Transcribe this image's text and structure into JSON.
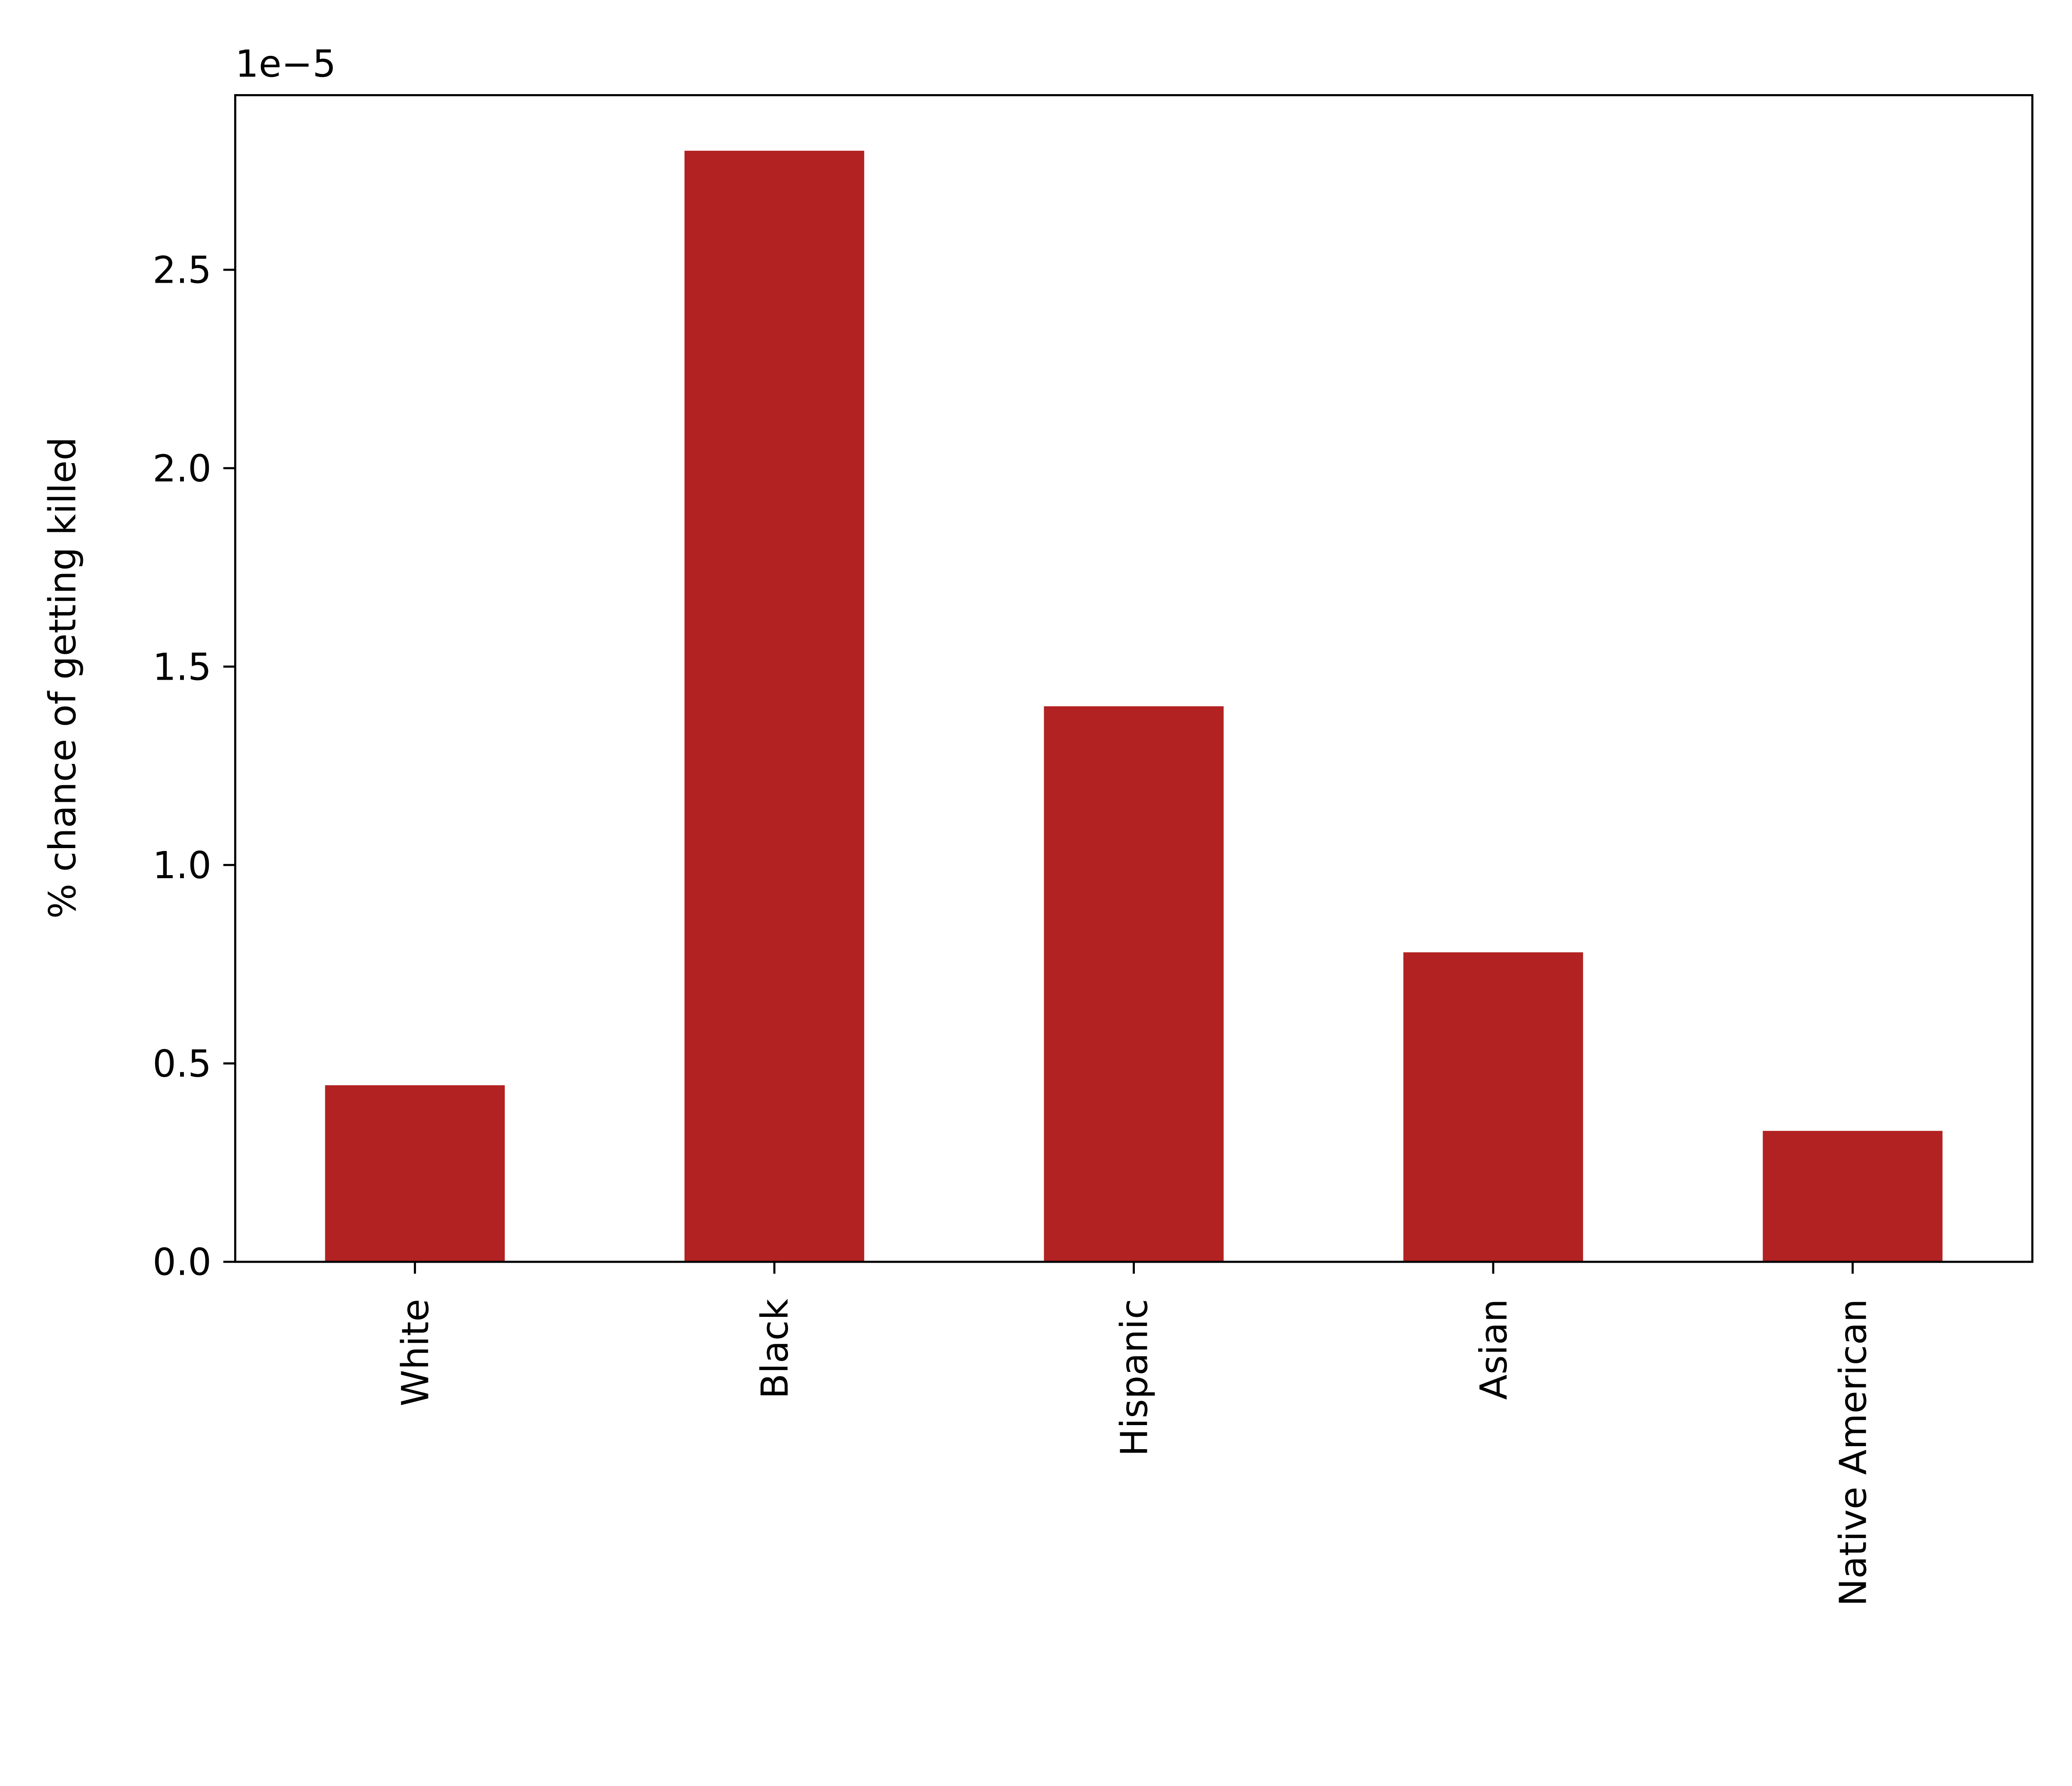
{
  "chart_data": {
    "type": "bar",
    "y_label": "% chance of getting killed",
    "y_offset_label": "1e−5",
    "categories": [
      "White",
      "Black",
      "Hispanic",
      "Asian",
      "Native American"
    ],
    "values": [
      0.445,
      2.8,
      1.4,
      0.78,
      0.33
    ],
    "color": "#b22222",
    "ylim": [
      0,
      2.94
    ],
    "yticks": [
      {
        "value": 0,
        "label": "0.0"
      },
      0.5,
      {
        "value": 1,
        "label": "1.0"
      },
      1.5,
      {
        "value": 2,
        "label": "2.0"
      },
      2.5
    ],
    "grid": false
  }
}
